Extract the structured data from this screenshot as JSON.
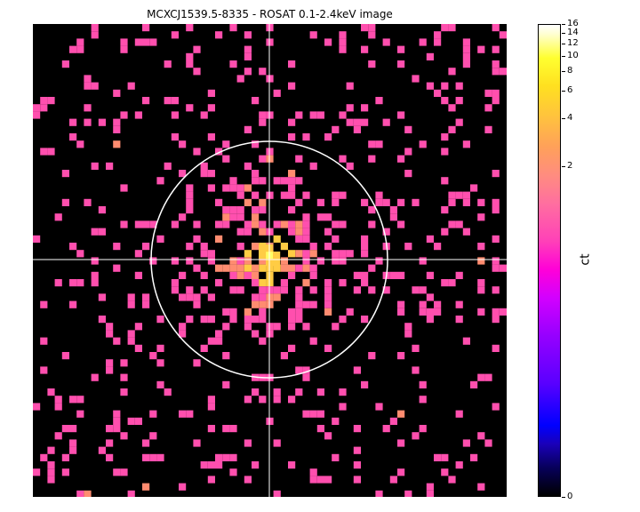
{
  "figure": {
    "title": "MCXCJ1539.5-8335 -  ROSAT 0.1-2.4keV image"
  },
  "colorbar": {
    "label": "ct",
    "ticks": [
      "16",
      "14",
      "12",
      "10",
      "8",
      "6",
      "4",
      "2",
      "0"
    ]
  },
  "image": {
    "description_colors": {
      "background": "#000000",
      "pixel_single": "#ff4fae",
      "pixel_double": "#ff8c70",
      "pixel_high": "#ffcc44",
      "pixel_peak": "#ffff66"
    }
  }
}
